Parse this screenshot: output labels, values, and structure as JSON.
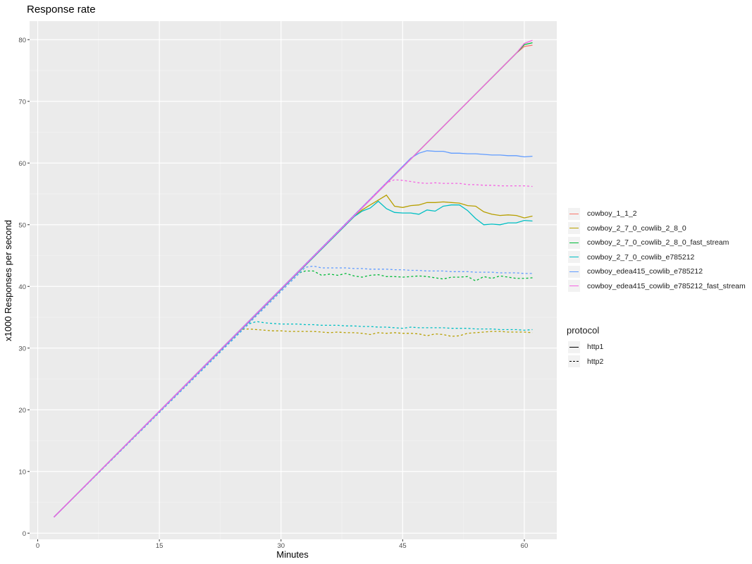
{
  "chart_data": {
    "type": "line",
    "title": "Response rate",
    "xlabel": "Minutes",
    "ylabel": "x1000 Responses per second",
    "xlim": [
      -1,
      64
    ],
    "ylim": [
      -1,
      83
    ],
    "xticks": [
      0,
      15,
      30,
      45,
      60
    ],
    "yticks": [
      0,
      10,
      20,
      30,
      40,
      50,
      60,
      70,
      80
    ],
    "grid": true,
    "legend_placement": "right",
    "color_legend": [
      {
        "name": "cowboy_1_1_2",
        "color": "#F8766D"
      },
      {
        "name": "cowboy_2_7_0_cowlib_2_8_0",
        "color": "#B79F00"
      },
      {
        "name": "cowboy_2_7_0_cowlib_2_8_0_fast_stream",
        "color": "#00BA38"
      },
      {
        "name": "cowboy_2_7_0_cowlib_e785212",
        "color": "#00BFC4"
      },
      {
        "name": "cowboy_edea415_cowlib_e785212",
        "color": "#619CFF"
      },
      {
        "name": "cowboy_edea415_cowlib_e785212_fast_stream",
        "color": "#F564E3"
      }
    ],
    "linetype_legend": {
      "title": "protocol",
      "items": [
        {
          "name": "http1",
          "dash": "solid"
        },
        {
          "name": "http2",
          "dash": "dashed"
        }
      ]
    },
    "series": [
      {
        "group": 0,
        "protocol": "http1",
        "points": [
          [
            2,
            2.6
          ],
          [
            59,
            77.8
          ],
          [
            60,
            78.9
          ],
          [
            61,
            79.1
          ]
        ]
      },
      {
        "group": 1,
        "protocol": "http1",
        "points": [
          [
            2,
            2.6
          ],
          [
            39,
            51.3
          ],
          [
            40,
            52.4
          ],
          [
            41,
            53.2
          ],
          [
            42,
            54
          ],
          [
            43,
            54.8
          ],
          [
            44,
            53
          ],
          [
            45,
            52.8
          ],
          [
            46,
            53.1
          ],
          [
            47,
            53.2
          ],
          [
            48,
            53.6
          ],
          [
            49,
            53.6
          ],
          [
            50,
            53.7
          ],
          [
            51,
            53.6
          ],
          [
            52,
            53.5
          ],
          [
            53,
            53.1
          ],
          [
            54,
            53
          ],
          [
            55,
            52.1
          ],
          [
            56,
            51.7
          ],
          [
            57,
            51.5
          ],
          [
            58,
            51.6
          ],
          [
            59,
            51.5
          ],
          [
            60,
            51.1
          ],
          [
            61,
            51.4
          ]
        ]
      },
      {
        "group": 1,
        "protocol": "http2",
        "points": [
          [
            2,
            2.6
          ],
          [
            25,
            33
          ],
          [
            26,
            33.1
          ],
          [
            27,
            33
          ],
          [
            28,
            32.9
          ],
          [
            29,
            32.8
          ],
          [
            30,
            32.8
          ],
          [
            31,
            32.7
          ],
          [
            32,
            32.7
          ],
          [
            33,
            32.7
          ],
          [
            34,
            32.7
          ],
          [
            35,
            32.6
          ],
          [
            36,
            32.5
          ],
          [
            37,
            32.6
          ],
          [
            38,
            32.5
          ],
          [
            39,
            32.5
          ],
          [
            40,
            32.4
          ],
          [
            41,
            32.2
          ],
          [
            42,
            32.5
          ],
          [
            43,
            32.4
          ],
          [
            44,
            32.5
          ],
          [
            45,
            32.4
          ],
          [
            46,
            32.4
          ],
          [
            47,
            32.3
          ],
          [
            48,
            32
          ],
          [
            49,
            32.3
          ],
          [
            50,
            32.2
          ],
          [
            51,
            31.9
          ],
          [
            52,
            32
          ],
          [
            53,
            32.4
          ],
          [
            54,
            32.5
          ],
          [
            55,
            32.6
          ],
          [
            56,
            32.7
          ],
          [
            57,
            32.7
          ],
          [
            58,
            32.6
          ],
          [
            59,
            32.6
          ],
          [
            60,
            32.6
          ],
          [
            61,
            32.5
          ]
        ]
      },
      {
        "group": 2,
        "protocol": "http1",
        "points": [
          [
            2,
            2.6
          ],
          [
            59,
            77.8
          ],
          [
            60,
            79.2
          ],
          [
            61,
            79.5
          ]
        ]
      },
      {
        "group": 2,
        "protocol": "http2",
        "points": [
          [
            2,
            2.6
          ],
          [
            32,
            42.1
          ],
          [
            33,
            42.5
          ],
          [
            34,
            42.5
          ],
          [
            35,
            41.8
          ],
          [
            36,
            42
          ],
          [
            37,
            41.8
          ],
          [
            38,
            42.1
          ],
          [
            39,
            41.7
          ],
          [
            40,
            41.5
          ],
          [
            41,
            41.8
          ],
          [
            42,
            41.9
          ],
          [
            43,
            41.6
          ],
          [
            44,
            41.6
          ],
          [
            45,
            41.5
          ],
          [
            46,
            41.6
          ],
          [
            47,
            41.7
          ],
          [
            48,
            41.6
          ],
          [
            49,
            41.4
          ],
          [
            50,
            41.2
          ],
          [
            51,
            41.5
          ],
          [
            52,
            41.5
          ],
          [
            53,
            41.6
          ],
          [
            54,
            40.9
          ],
          [
            55,
            41.6
          ],
          [
            56,
            41.3
          ],
          [
            57,
            41.7
          ],
          [
            58,
            41.5
          ],
          [
            59,
            41.3
          ],
          [
            60,
            41.3
          ],
          [
            61,
            41.4
          ]
        ]
      },
      {
        "group": 3,
        "protocol": "http1",
        "points": [
          [
            2,
            2.6
          ],
          [
            39,
            51.3
          ],
          [
            40,
            52.2
          ],
          [
            41,
            52.7
          ],
          [
            42,
            53.8
          ],
          [
            43,
            52.6
          ],
          [
            44,
            52
          ],
          [
            45,
            51.9
          ],
          [
            46,
            51.9
          ],
          [
            47,
            51.7
          ],
          [
            48,
            52.4
          ],
          [
            49,
            52.2
          ],
          [
            50,
            53
          ],
          [
            51,
            53.2
          ],
          [
            52,
            53.2
          ],
          [
            53,
            52.3
          ],
          [
            54,
            51
          ],
          [
            55,
            50
          ],
          [
            56,
            50.1
          ],
          [
            57,
            50
          ],
          [
            58,
            50.3
          ],
          [
            59,
            50.3
          ],
          [
            60,
            50.7
          ],
          [
            61,
            50.6
          ]
        ]
      },
      {
        "group": 3,
        "protocol": "http2",
        "points": [
          [
            2,
            2.6
          ],
          [
            26,
            33.9
          ],
          [
            27,
            34.3
          ],
          [
            28,
            34.1
          ],
          [
            29,
            34
          ],
          [
            30,
            33.9
          ],
          [
            31,
            33.9
          ],
          [
            32,
            33.9
          ],
          [
            33,
            33.8
          ],
          [
            34,
            33.8
          ],
          [
            35,
            33.7
          ],
          [
            36,
            33.7
          ],
          [
            37,
            33.7
          ],
          [
            38,
            33.6
          ],
          [
            39,
            33.6
          ],
          [
            40,
            33.5
          ],
          [
            41,
            33.5
          ],
          [
            42,
            33.4
          ],
          [
            43,
            33.4
          ],
          [
            44,
            33.3
          ],
          [
            45,
            33.2
          ],
          [
            46,
            33.4
          ],
          [
            47,
            33.3
          ],
          [
            48,
            33.3
          ],
          [
            49,
            33.3
          ],
          [
            50,
            33.3
          ],
          [
            51,
            33.2
          ],
          [
            52,
            33.2
          ],
          [
            53,
            33.2
          ],
          [
            54,
            33.1
          ],
          [
            55,
            33.1
          ],
          [
            56,
            33.1
          ],
          [
            57,
            33
          ],
          [
            58,
            33
          ],
          [
            59,
            33
          ],
          [
            60,
            32.9
          ],
          [
            61,
            33
          ]
        ]
      },
      {
        "group": 4,
        "protocol": "http1",
        "points": [
          [
            2,
            2.6
          ],
          [
            46,
            60.8
          ],
          [
            47,
            61.6
          ],
          [
            48,
            62
          ],
          [
            49,
            61.9
          ],
          [
            50,
            61.9
          ],
          [
            51,
            61.6
          ],
          [
            52,
            61.6
          ],
          [
            53,
            61.5
          ],
          [
            54,
            61.5
          ],
          [
            55,
            61.4
          ],
          [
            56,
            61.3
          ],
          [
            57,
            61.3
          ],
          [
            58,
            61.2
          ],
          [
            59,
            61.2
          ],
          [
            60,
            61
          ],
          [
            61,
            61.1
          ]
        ]
      },
      {
        "group": 4,
        "protocol": "http2",
        "points": [
          [
            2,
            2.6
          ],
          [
            33,
            43.1
          ],
          [
            34,
            43.3
          ],
          [
            35,
            43
          ],
          [
            36,
            43
          ],
          [
            37,
            43
          ],
          [
            38,
            43
          ],
          [
            39,
            42.9
          ],
          [
            40,
            42.9
          ],
          [
            41,
            42.8
          ],
          [
            42,
            42.8
          ],
          [
            43,
            42.8
          ],
          [
            44,
            42.7
          ],
          [
            45,
            42.7
          ],
          [
            46,
            42.6
          ],
          [
            47,
            42.6
          ],
          [
            48,
            42.5
          ],
          [
            49,
            42.5
          ],
          [
            50,
            42.5
          ],
          [
            51,
            42.4
          ],
          [
            52,
            42.4
          ],
          [
            53,
            42.4
          ],
          [
            54,
            42.3
          ],
          [
            55,
            42.3
          ],
          [
            56,
            42.3
          ],
          [
            57,
            42.2
          ],
          [
            58,
            42.2
          ],
          [
            59,
            42.2
          ],
          [
            60,
            42.1
          ],
          [
            61,
            42.1
          ]
        ]
      },
      {
        "group": 5,
        "protocol": "http1",
        "points": [
          [
            2,
            2.6
          ],
          [
            59,
            77.8
          ],
          [
            60,
            79.4
          ],
          [
            61,
            79.9
          ]
        ]
      },
      {
        "group": 5,
        "protocol": "http2",
        "points": [
          [
            2,
            2.6
          ],
          [
            43,
            56.8
          ],
          [
            44,
            57.3
          ],
          [
            45,
            57.2
          ],
          [
            46,
            57
          ],
          [
            47,
            56.8
          ],
          [
            48,
            56.7
          ],
          [
            49,
            56.8
          ],
          [
            50,
            56.7
          ],
          [
            51,
            56.7
          ],
          [
            52,
            56.7
          ],
          [
            53,
            56.5
          ],
          [
            54,
            56.5
          ],
          [
            55,
            56.4
          ],
          [
            56,
            56.4
          ],
          [
            57,
            56.3
          ],
          [
            58,
            56.3
          ],
          [
            59,
            56.3
          ],
          [
            60,
            56.3
          ],
          [
            61,
            56.2
          ]
        ]
      }
    ]
  }
}
